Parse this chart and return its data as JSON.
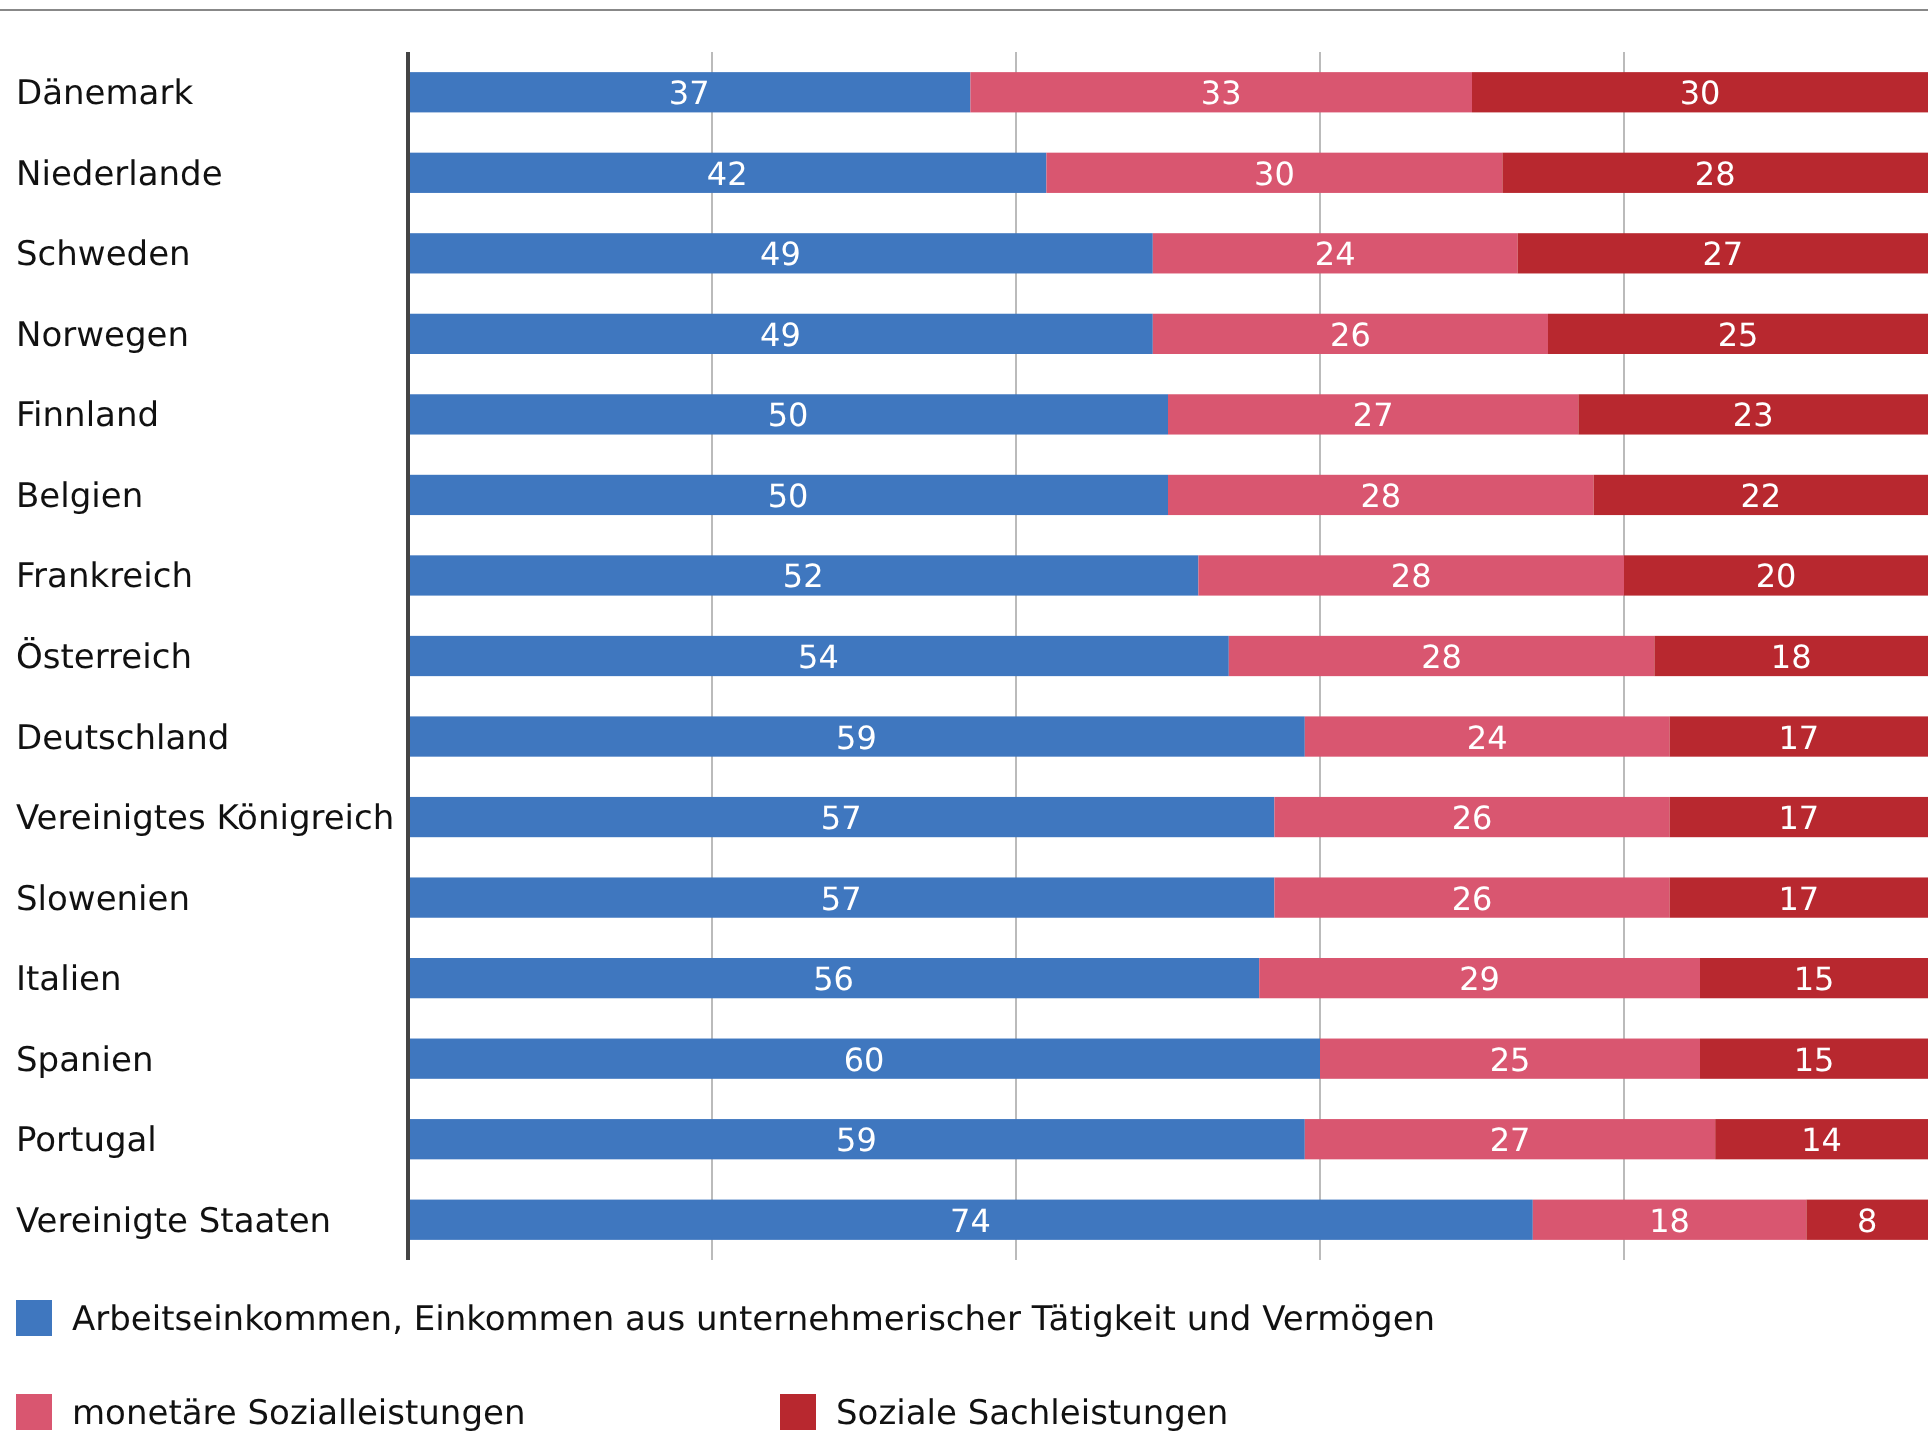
{
  "chart_data": {
    "type": "bar",
    "orientation": "horizontal",
    "stacked": true,
    "data_labels": true,
    "legend": "bottom",
    "grid": "x",
    "tick_labels": "y",
    "xlim": [
      0,
      100
    ],
    "xticks": [
      {
        "value": 0,
        "label": null
      },
      {
        "value": 20,
        "label": null
      },
      {
        "value": 40,
        "label": null
      },
      {
        "value": 60,
        "label": null
      },
      {
        "value": 80,
        "label": null
      }
    ],
    "categories": [
      "Dänemark",
      "Niederlande",
      "Schweden",
      "Norwegen",
      "Finnland",
      "Belgien",
      "Frankreich",
      "Österreich",
      "Deutschland",
      "Vereinigtes Königreich",
      "Slowenien",
      "Italien",
      "Spanien",
      "Portugal",
      "Vereinigte Staaten"
    ],
    "series": [
      {
        "name": "Arbeitseinkommen, Einkommen aus unternehmerischer Tätigkeit und Vermögen",
        "color": "#3f77bf",
        "values": [
          37,
          42,
          49,
          49,
          50,
          50,
          52,
          54,
          59,
          57,
          57,
          56,
          60,
          59,
          74
        ]
      },
      {
        "name": "monetäre Sozialleistungen",
        "color": "#d95670",
        "values": [
          33,
          30,
          24,
          26,
          27,
          28,
          28,
          28,
          24,
          26,
          26,
          29,
          25,
          27,
          18
        ]
      },
      {
        "name": "Soziale Sachleistungen",
        "color": "#b8282f",
        "values": [
          30,
          28,
          27,
          25,
          23,
          22,
          20,
          18,
          17,
          17,
          17,
          15,
          15,
          14,
          8
        ]
      }
    ]
  }
}
